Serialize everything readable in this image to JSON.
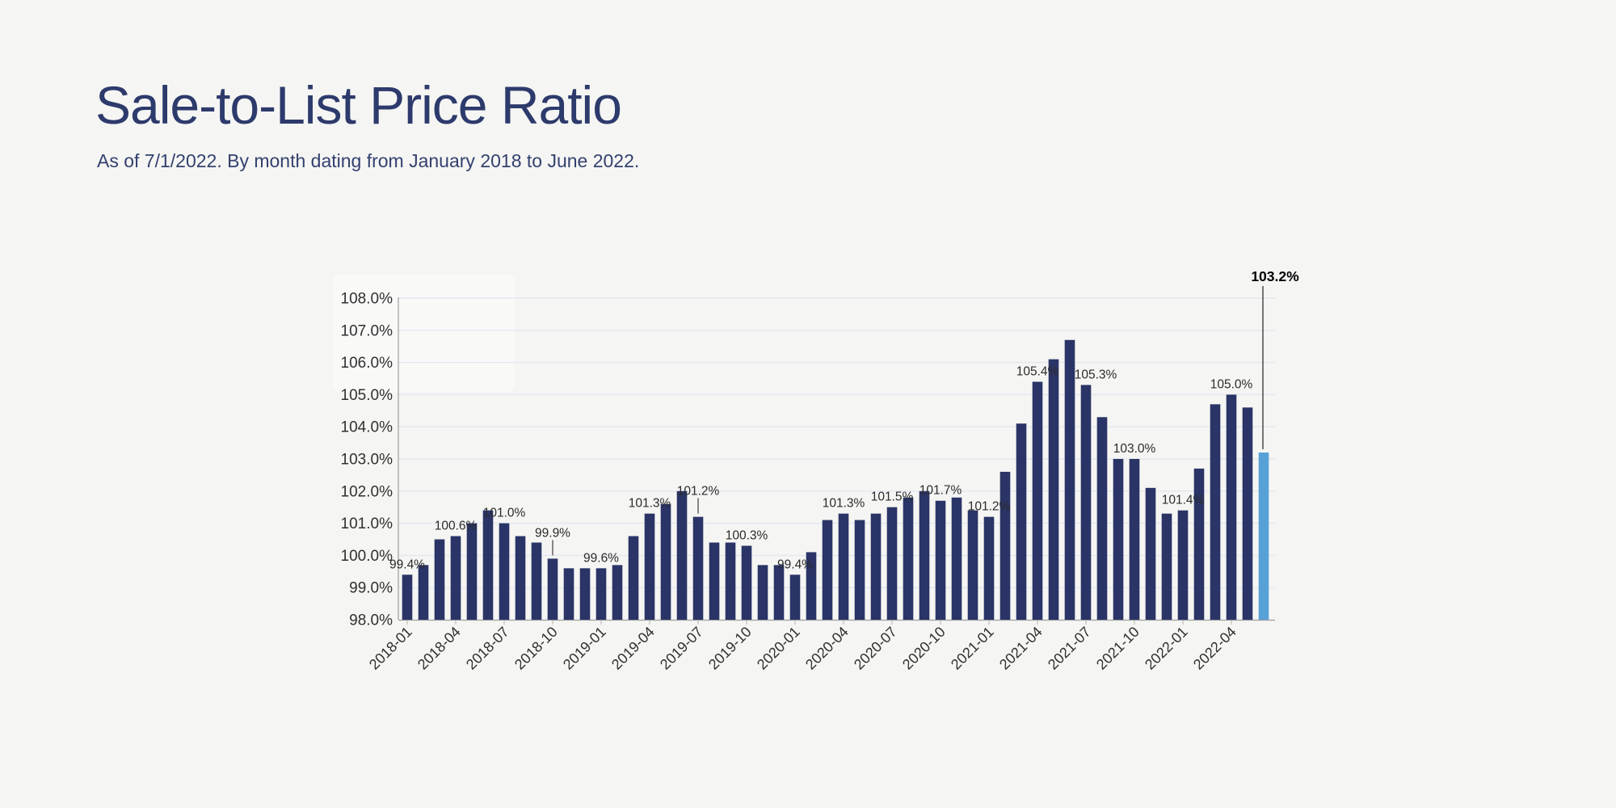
{
  "page": {
    "title": "Sale-to-List Price Ratio",
    "subtitle": "As of 7/1/2022. By month dating from January 2018 to June 2022."
  },
  "colors": {
    "background": "#f5f5f3",
    "title": "#2d3a6c",
    "subtitle": "#33416f",
    "bar": "#2a3466",
    "bar_highlight": "#58a1d7",
    "gridline": "#e3e7f0",
    "axis_line": "#9e9e9e",
    "tick_mark": "#b5b5b5",
    "axis_label": "#303030",
    "data_label": "#2b2b2b",
    "final_label": "#000000",
    "leader_line": "#2b2b2b"
  },
  "chart_data": {
    "type": "bar",
    "title": "Sale-to-List Price Ratio",
    "subtitle": "As of 7/1/2022. By month dating from January 2018 to June 2022.",
    "xlabel": "",
    "ylabel": "",
    "unit": "%",
    "ylim": [
      98,
      108
    ],
    "ytick_step": 1,
    "grid": "horizontal",
    "legend": "none",
    "ytick_labels": [
      "98.0%",
      "99.0%",
      "100.0%",
      "101.0%",
      "102.0%",
      "103.0%",
      "104.0%",
      "105.0%",
      "106.0%",
      "107.0%",
      "108.0%"
    ],
    "xtick_labels": [
      "2018-01",
      "2018-04",
      "2018-07",
      "2018-10",
      "2019-01",
      "2019-04",
      "2019-07",
      "2019-10",
      "2020-01",
      "2020-04",
      "2020-07",
      "2020-10",
      "2021-01",
      "2021-04",
      "2021-07",
      "2021-10",
      "2022-01",
      "2022-04"
    ],
    "x": [
      "2018-01",
      "2018-02",
      "2018-03",
      "2018-04",
      "2018-05",
      "2018-06",
      "2018-07",
      "2018-08",
      "2018-09",
      "2018-10",
      "2018-11",
      "2018-12",
      "2019-01",
      "2019-02",
      "2019-03",
      "2019-04",
      "2019-05",
      "2019-06",
      "2019-07",
      "2019-08",
      "2019-09",
      "2019-10",
      "2019-11",
      "2019-12",
      "2020-01",
      "2020-02",
      "2020-03",
      "2020-04",
      "2020-05",
      "2020-06",
      "2020-07",
      "2020-08",
      "2020-09",
      "2020-10",
      "2020-11",
      "2020-12",
      "2021-01",
      "2021-02",
      "2021-03",
      "2021-04",
      "2021-05",
      "2021-06",
      "2021-07",
      "2021-08",
      "2021-09",
      "2021-10",
      "2021-11",
      "2021-12",
      "2022-01",
      "2022-02",
      "2022-03",
      "2022-04",
      "2022-05",
      "2022-06"
    ],
    "values": [
      99.4,
      99.7,
      100.5,
      100.6,
      101.0,
      101.4,
      101.0,
      100.6,
      100.4,
      99.9,
      99.6,
      99.6,
      99.6,
      99.7,
      100.6,
      101.3,
      101.6,
      102.0,
      101.2,
      100.4,
      100.4,
      100.3,
      99.7,
      99.7,
      99.4,
      100.1,
      101.1,
      101.3,
      101.1,
      101.3,
      101.5,
      101.8,
      102.0,
      101.7,
      101.8,
      101.4,
      101.2,
      102.6,
      104.1,
      105.4,
      106.1,
      106.7,
      105.3,
      104.3,
      103.0,
      103.0,
      102.1,
      101.3,
      101.4,
      102.7,
      104.7,
      105.0,
      104.6,
      103.2
    ],
    "data_label_indices": [
      0,
      3,
      6,
      9,
      12,
      15,
      18,
      21,
      24,
      27,
      30,
      33,
      36,
      39,
      42,
      45,
      48,
      51
    ],
    "data_labels": [
      "99.4%",
      "100.6%",
      "101.0%",
      "99.9%",
      "99.6%",
      "101.3%",
      "101.2%",
      "100.3%",
      "99.4%",
      "101.3%",
      "101.5%",
      "101.7%",
      "101.2%",
      "105.4%",
      "105.3%",
      "103.0%",
      "101.4%",
      "105.0%"
    ],
    "leader_line_indices": [
      9,
      18
    ],
    "label_x_offsets": {
      "42": 12
    },
    "highlight": {
      "index": 53,
      "label": "103.2%",
      "long_leader": true
    }
  }
}
